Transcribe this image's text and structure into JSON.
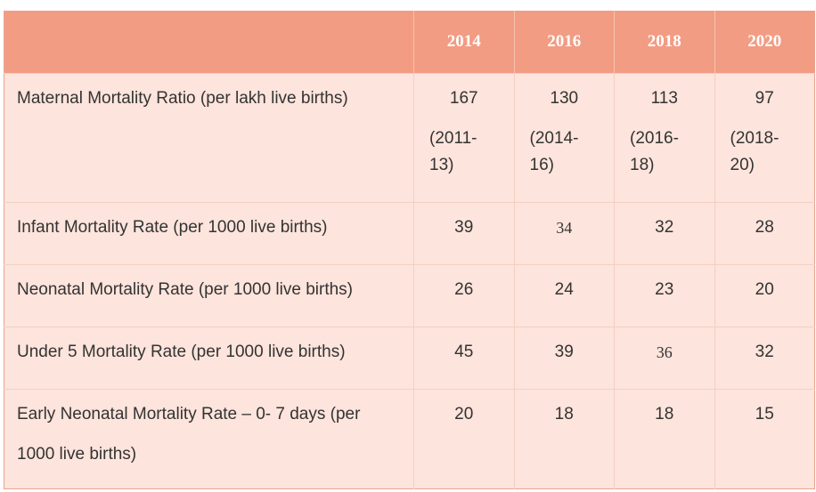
{
  "table": {
    "years": [
      "2014",
      "2016",
      "2018",
      "2020"
    ],
    "rows": [
      {
        "label": "Maternal Mortality Ratio (per lakh live births)",
        "values": [
          "167",
          "130",
          "113",
          "97"
        ],
        "periods": [
          "(2011-13)",
          "(2014-16)",
          "(2016-18)",
          "(2018-20)"
        ]
      },
      {
        "label": "Infant Mortality Rate (per 1000 live births)",
        "values": [
          "39",
          "34",
          "32",
          "28"
        ]
      },
      {
        "label": "Neonatal Mortality Rate (per 1000 live births)",
        "values": [
          "26",
          "24",
          "23",
          "20"
        ]
      },
      {
        "label": "Under 5 Mortality Rate (per 1000 live births)",
        "values": [
          "45",
          "39",
          "36",
          "32"
        ]
      },
      {
        "label": "Early Neonatal Mortality Rate – 0- 7 days (per 1000 live births)",
        "values": [
          "20",
          "18",
          "18",
          "15"
        ]
      }
    ]
  },
  "colors": {
    "header_bg": "#f29c83",
    "body_bg": "#fde4dc",
    "text": "#333333"
  }
}
